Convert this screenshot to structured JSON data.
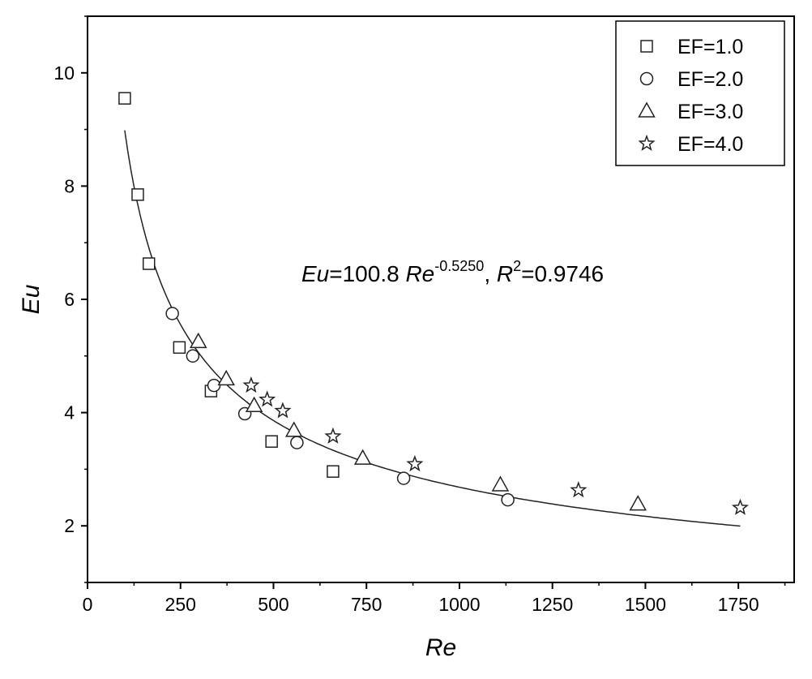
{
  "chart_data": {
    "type": "scatter",
    "xlabel": "Re",
    "ylabel": "Eu",
    "xlim": [
      0,
      1900
    ],
    "ylim": [
      1,
      11
    ],
    "x_ticks": [
      0,
      250,
      500,
      750,
      1000,
      1250,
      1500,
      1750
    ],
    "x_tick_labels": [
      "0",
      "250",
      "500",
      "750",
      "1000",
      "1250",
      "1500",
      "1750"
    ],
    "y_ticks": [
      2,
      4,
      6,
      8,
      10
    ],
    "y_tick_labels": [
      "2",
      "4",
      "6",
      "8",
      "10"
    ],
    "legend_position": "top-right",
    "series": [
      {
        "name": "EF=1.0",
        "marker": "square",
        "points": [
          [
            100,
            9.55
          ],
          [
            135,
            7.85
          ],
          [
            165,
            6.63
          ],
          [
            247,
            5.15
          ],
          [
            332,
            4.38
          ],
          [
            495,
            3.49
          ],
          [
            660,
            2.96
          ]
        ]
      },
      {
        "name": "EF=2.0",
        "marker": "circle",
        "points": [
          [
            228,
            5.75
          ],
          [
            283,
            5.0
          ],
          [
            340,
            4.48
          ],
          [
            423,
            3.98
          ],
          [
            563,
            3.47
          ],
          [
            850,
            2.84
          ],
          [
            1130,
            2.46
          ]
        ]
      },
      {
        "name": "EF=3.0",
        "marker": "triangle",
        "points": [
          [
            298,
            5.25
          ],
          [
            373,
            4.59
          ],
          [
            448,
            4.12
          ],
          [
            555,
            3.68
          ],
          [
            740,
            3.19
          ],
          [
            1110,
            2.72
          ],
          [
            1480,
            2.38
          ]
        ]
      },
      {
        "name": "EF=4.0",
        "marker": "star",
        "points": [
          [
            440,
            4.48
          ],
          [
            483,
            4.23
          ],
          [
            525,
            4.03
          ],
          [
            660,
            3.58
          ],
          [
            880,
            3.09
          ],
          [
            1320,
            2.63
          ],
          [
            1755,
            2.32
          ]
        ]
      }
    ],
    "fit": {
      "coefficient": 100.8,
      "exponent": -0.525,
      "x_range": [
        100,
        1755
      ]
    },
    "annotation": {
      "var": "Eu",
      "eq_coef": "=100.8 ",
      "re": "Re",
      "exp": "-0.5250",
      "sep": ", ",
      "r": "R",
      "r_sup": "2",
      "r_val": "=0.9746"
    }
  }
}
